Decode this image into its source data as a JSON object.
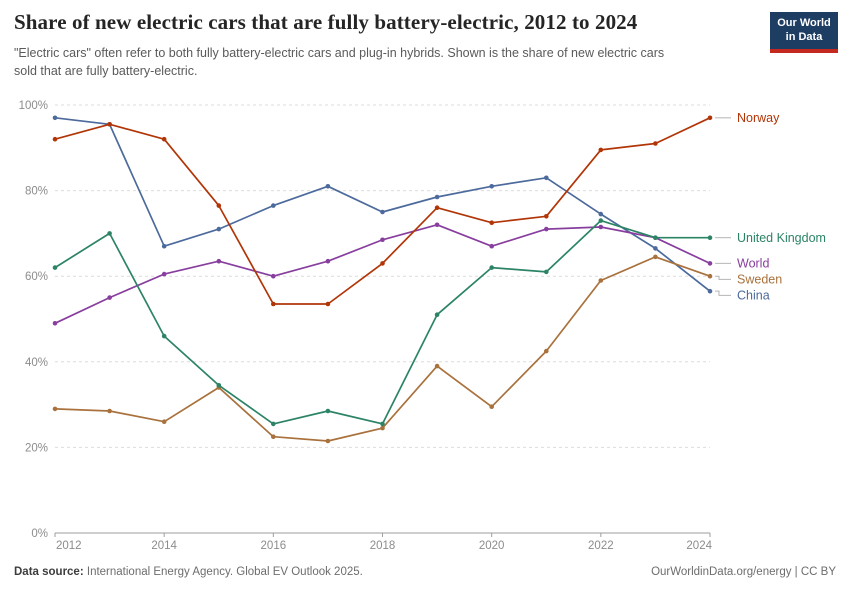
{
  "header": {
    "title": "Share of new electric cars that are fully battery-electric, 2012 to 2024",
    "subtitle": "\"Electric cars\" often refer to both fully battery-electric cars and plug-in hybrids. Shown is the share of new electric cars sold that are fully battery-electric.",
    "logo": {
      "line1": "Our World",
      "line2": "in Data",
      "bg_color": "#1d3d63",
      "stripe_color": "#c5281f"
    }
  },
  "footer": {
    "source_label": "Data source:",
    "source_text": "International Energy Agency. Global EV Outlook 2025.",
    "site_text": "OurWorldinData.org/energy | CC BY"
  },
  "colors": {
    "grid": "#dcdcdc",
    "axis": "#9e9e9e",
    "tick_label": "#8c8c8c",
    "connector": "#b5b5b5"
  },
  "chart_data": {
    "type": "line",
    "title": "Share of new electric cars that are fully battery-electric, 2012 to 2024",
    "xlabel": "",
    "ylabel": "",
    "unit": "%",
    "xlim": [
      2012,
      2024
    ],
    "ylim": [
      0,
      100
    ],
    "xticks": [
      2012,
      2014,
      2016,
      2018,
      2020,
      2022,
      2024
    ],
    "yticks": [
      0,
      20,
      40,
      60,
      80,
      100
    ],
    "grid": "horizontal-dashed",
    "legend_position": "right-of-line-ends",
    "x": [
      2012,
      2013,
      2014,
      2015,
      2016,
      2017,
      2018,
      2019,
      2020,
      2021,
      2022,
      2023,
      2024
    ],
    "series": [
      {
        "name": "Norway",
        "color": "#B13507",
        "values": [
          92,
          95.5,
          92,
          76.5,
          53.5,
          53.5,
          63,
          76,
          72.5,
          74,
          89.5,
          91,
          97
        ]
      },
      {
        "name": "United Kingdom",
        "color": "#2C8465",
        "values": [
          62,
          70,
          46,
          34.5,
          25.5,
          28.5,
          25.5,
          51,
          62,
          61,
          73,
          69,
          69
        ]
      },
      {
        "name": "World",
        "color": "#883E9E",
        "values": [
          49,
          55,
          60.5,
          63.5,
          60,
          63.5,
          68.5,
          72,
          67,
          71,
          71.5,
          69,
          63
        ]
      },
      {
        "name": "Sweden",
        "color": "#A9713C",
        "values": [
          29,
          28.5,
          26,
          34,
          22.5,
          21.5,
          24.5,
          39,
          29.5,
          42.5,
          59,
          64.5,
          60
        ]
      },
      {
        "name": "China",
        "color": "#4C6A9C",
        "values": [
          97,
          95.5,
          67,
          71,
          76.5,
          81,
          75,
          78.5,
          81,
          83,
          74.5,
          66.5,
          56.5
        ]
      }
    ]
  }
}
